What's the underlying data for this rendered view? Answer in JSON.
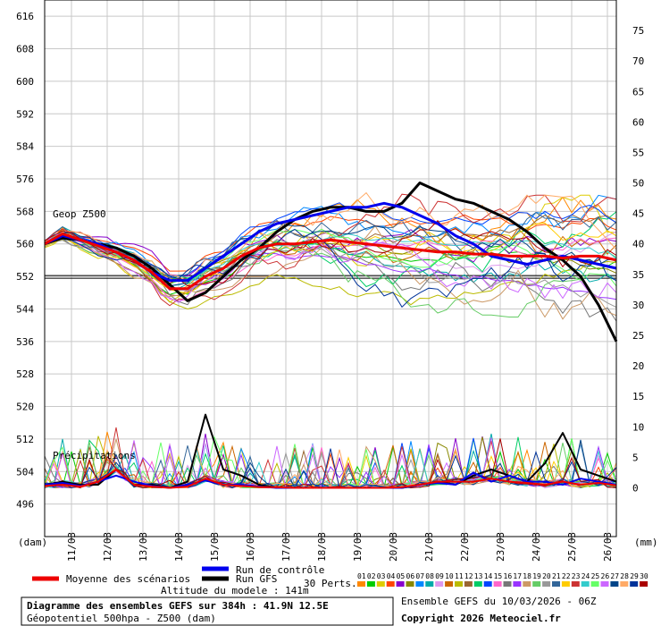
{
  "chart_data": {
    "type": "line",
    "title": "Diagramme des ensembles GEFS sur 384h : 41.9N 12.5E",
    "subtitle": "Géopotentiel 500hpa - Z500 (dam)",
    "left_axis": {
      "unit_label": "(dam)",
      "ylim": [
        488,
        620
      ],
      "ticks": [
        616,
        608,
        600,
        592,
        584,
        576,
        568,
        560,
        552,
        544,
        536,
        528,
        520,
        512,
        504,
        496
      ]
    },
    "right_axis": {
      "unit_label": "(mm)",
      "ylim": [
        -8,
        80
      ],
      "ticks": [
        75,
        70,
        65,
        60,
        55,
        50,
        45,
        40,
        35,
        30,
        25,
        20,
        15,
        10,
        5,
        0
      ]
    },
    "x_axis": {
      "labels": [
        "11/03",
        "12/03",
        "13/03",
        "14/03",
        "15/03",
        "16/03",
        "17/03",
        "18/03",
        "19/03",
        "20/03",
        "21/03",
        "22/03",
        "23/03",
        "24/03",
        "25/03",
        "26/03"
      ],
      "start_hour": 0,
      "end_hour": 384,
      "first_label_hour": 18
    },
    "reference_line": 552,
    "annotations": {
      "geop": "Geop Z500",
      "precip": "Précipitations"
    },
    "grid": true,
    "series": [
      {
        "name": "Moyenne des scénarios",
        "color": "#ee0000",
        "width": 3,
        "hours": [
          0,
          12,
          24,
          36,
          48,
          60,
          72,
          84,
          96,
          108,
          120,
          132,
          144,
          156,
          168,
          180,
          192,
          204,
          216,
          228,
          240,
          252,
          264,
          276,
          288,
          300,
          312,
          324,
          336,
          348,
          360,
          372,
          384
        ],
        "values": [
          560,
          562.5,
          561,
          559.5,
          558,
          556,
          553,
          549,
          549,
          552,
          554,
          557,
          559,
          560,
          560,
          560.5,
          561,
          560.5,
          560,
          559.5,
          559,
          558.5,
          558,
          558,
          557.5,
          557.5,
          557,
          557,
          557,
          556.5,
          557,
          557,
          556
        ],
        "precip_values": [
          0.3,
          0.5,
          0.2,
          1,
          3,
          0.5,
          0.2,
          0,
          0.2,
          1.5,
          0.5,
          0.3,
          0.1,
          0.1,
          0,
          0,
          0,
          0,
          0,
          0,
          0.1,
          0.5,
          1,
          1,
          1,
          1.5,
          1,
          0.8,
          0.5,
          1,
          0.5,
          0.8,
          0.4
        ]
      },
      {
        "name": "Run de contrôle",
        "color": "#0000ee",
        "width": 3,
        "hours": [
          0,
          12,
          24,
          36,
          48,
          60,
          72,
          84,
          96,
          108,
          120,
          132,
          144,
          156,
          168,
          180,
          192,
          204,
          216,
          228,
          240,
          252,
          264,
          276,
          288,
          300,
          312,
          324,
          336,
          348,
          360,
          372,
          384
        ],
        "values": [
          560,
          562,
          561,
          560,
          558,
          556,
          553,
          551,
          551,
          554,
          557,
          560,
          563,
          565,
          566,
          567,
          568,
          569,
          569,
          570,
          569,
          567,
          565,
          562,
          560,
          557,
          556,
          555,
          556,
          557,
          556,
          555,
          554
        ],
        "precip_values": [
          0.5,
          0.8,
          0.3,
          1,
          2,
          1,
          0.3,
          0,
          0.5,
          1.2,
          0.5,
          0.5,
          0.2,
          0,
          0,
          0,
          0,
          0,
          0,
          0,
          0,
          0.5,
          0.8,
          0.5,
          2.5,
          1,
          2,
          1,
          1,
          0.5,
          1.5,
          1,
          0.5
        ]
      },
      {
        "name": "Run GFS",
        "color": "#000000",
        "width": 3,
        "hours": [
          0,
          12,
          24,
          36,
          48,
          60,
          72,
          84,
          96,
          108,
          120,
          132,
          144,
          156,
          168,
          180,
          192,
          204,
          216,
          228,
          240,
          252,
          264,
          276,
          288,
          300,
          312,
          324,
          336,
          348,
          360,
          372,
          384
        ],
        "values": [
          560,
          561.5,
          561,
          560,
          559,
          557,
          554,
          550,
          546,
          548,
          552,
          556,
          559,
          563,
          566,
          568,
          569,
          569,
          568,
          568,
          570,
          575,
          573,
          571,
          570,
          568,
          566,
          563,
          559,
          556,
          552,
          545,
          536
        ],
        "precip_values": [
          0.5,
          1,
          0.5,
          0.5,
          3,
          0.5,
          0.5,
          0,
          1,
          12,
          3,
          2,
          0.5,
          0,
          0,
          0,
          0,
          0,
          0,
          0,
          0,
          0.5,
          1,
          0.5,
          2,
          3,
          2,
          1,
          4,
          9,
          3,
          2,
          1
        ]
      }
    ],
    "perturbations": {
      "count": 30,
      "label": "30 Perts.",
      "labels": [
        "01",
        "02",
        "03",
        "04",
        "05",
        "06",
        "07",
        "08",
        "09",
        "10",
        "11",
        "12",
        "13",
        "14",
        "15",
        "16",
        "17",
        "18",
        "19",
        "20",
        "21",
        "22",
        "23",
        "24",
        "25",
        "26",
        "27",
        "28",
        "29",
        "30"
      ],
      "colors": [
        "#ff8800",
        "#00cc00",
        "#ddcc00",
        "#ff4400",
        "#8800cc",
        "#888800",
        "#0088ff",
        "#00aaaa",
        "#dd99ee",
        "#cc6600",
        "#bbbb00",
        "#996633",
        "#00cc66",
        "#0044ff",
        "#ff66cc",
        "#777777",
        "#9933ff",
        "#cc9966",
        "#66cc66",
        "#999999",
        "#336699",
        "#ffcc00",
        "#cc3333",
        "#33cccc",
        "#66ff66",
        "#cc66ff",
        "#004488",
        "#ffaa66",
        "#003399",
        "#aa0000"
      ]
    }
  },
  "legend": {
    "mean": "Moyenne des scénarios",
    "control": "Run de contrôle",
    "gfs": "Run GFS",
    "perts": "30 Perts.",
    "altitude": "Altitude du modele : 141m"
  },
  "footer": {
    "title": "Diagramme des ensembles GEFS sur 384h : 41.9N 12.5E",
    "subtitle": "Géopotentiel 500hpa - Z500 (dam)",
    "run": "Ensemble GEFS du 10/03/2026 - 06Z",
    "copyright": "Copyright 2026 Meteociel.fr"
  }
}
